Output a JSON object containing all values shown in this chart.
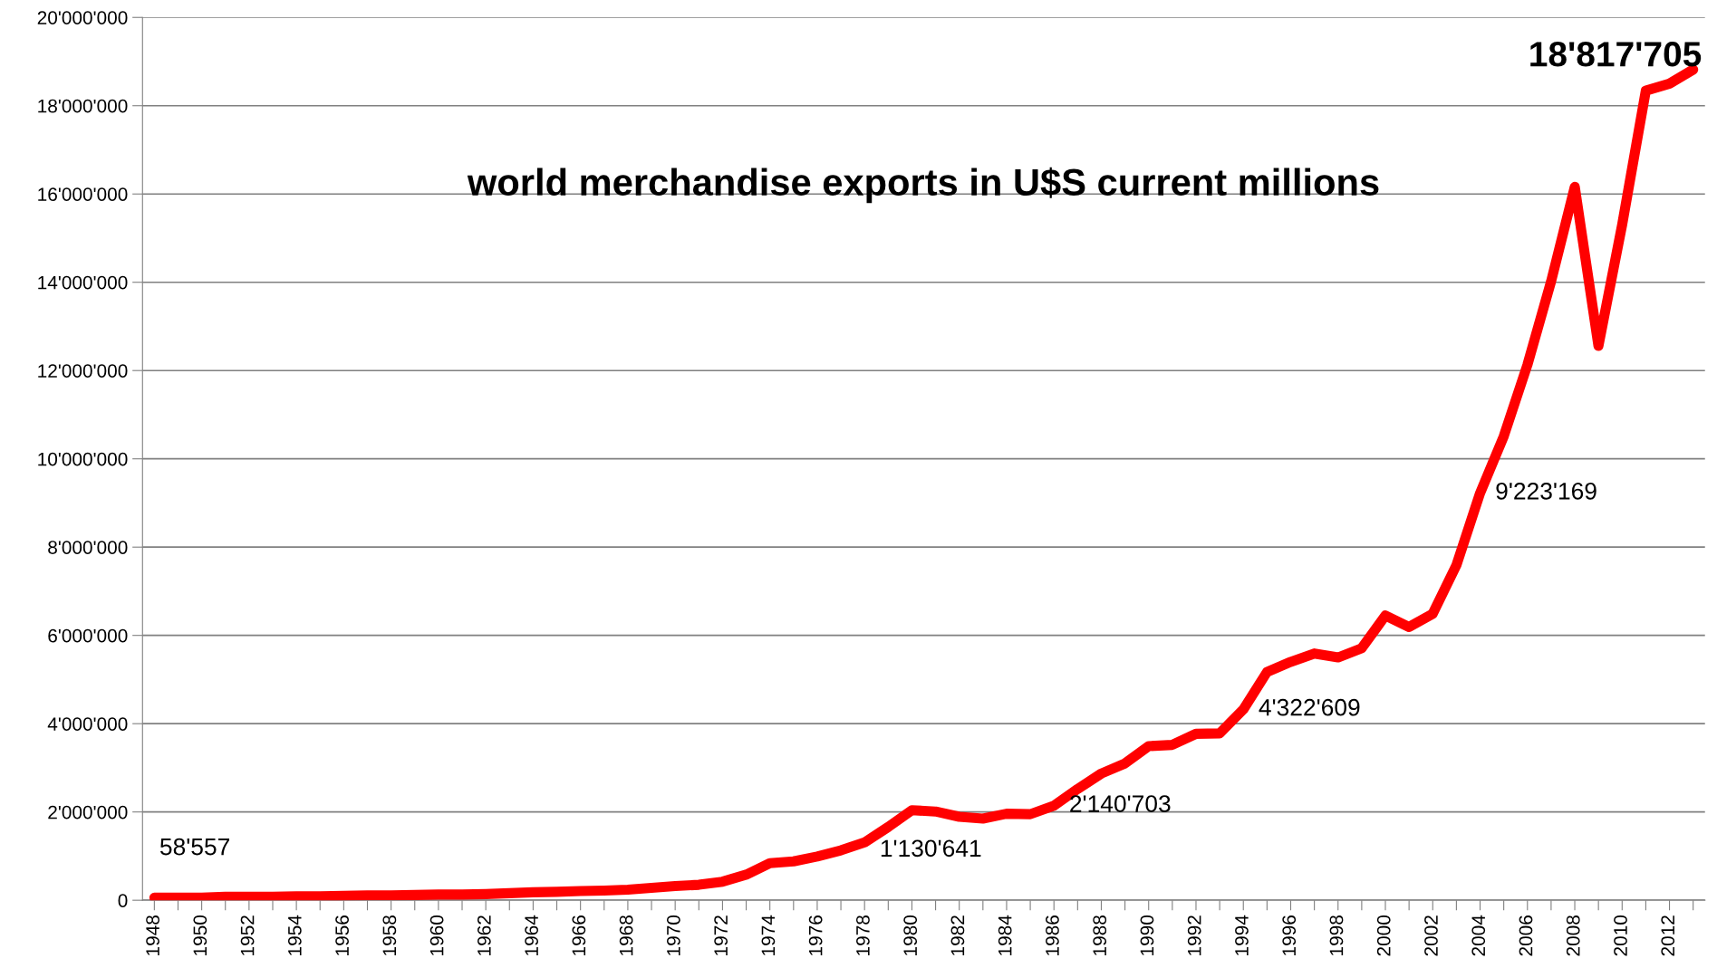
{
  "chart_data": {
    "type": "line",
    "title": "world merchandise exports in U$S current millions",
    "categories": [
      "1948",
      null,
      "1950",
      null,
      "1952",
      null,
      "1954",
      null,
      "1956",
      null,
      "1958",
      null,
      "1960",
      null,
      "1962",
      null,
      "1964",
      null,
      "1966",
      null,
      "1968",
      null,
      "1970",
      null,
      "1972",
      null,
      "1974",
      null,
      "1976",
      null,
      "1978",
      null,
      "1980",
      null,
      "1982",
      null,
      "1984",
      null,
      "1986",
      null,
      "1988",
      null,
      "1990",
      null,
      "1992",
      null,
      "1994",
      null,
      "1996",
      null,
      "1998",
      null,
      "2000",
      null,
      "2002",
      null,
      "2004",
      null,
      "2006",
      null,
      "2008",
      null,
      "2010",
      null,
      "2012",
      null
    ],
    "series": [
      {
        "color": "#ff0000",
        "values": [
          58557,
          60000,
          60000,
          80000,
          80000,
          80000,
          90000,
          90000,
          100000,
          110000,
          110000,
          120000,
          130000,
          130000,
          140000,
          160000,
          180000,
          190000,
          210000,
          220000,
          240000,
          280000,
          320000,
          350000,
          420000,
          580000,
          840000,
          880000,
          990000,
          1130641,
          1310000,
          1660000,
          2040000,
          2010000,
          1890000,
          1850000,
          1960000,
          1950000,
          2140703,
          2520000,
          2870000,
          3100000,
          3490000,
          3520000,
          3770000,
          3780000,
          4322609,
          5170000,
          5400000,
          5590000,
          5500000,
          5710000,
          6450000,
          6190000,
          6490000,
          7590000,
          9223169,
          10510000,
          12130000,
          14020000,
          16160000,
          12560000,
          15300000,
          18340000,
          18500000,
          18817705
        ]
      }
    ],
    "ylim": [
      0,
      20000000
    ],
    "yticks": [
      0,
      {
        "value": 2000000,
        "label": "2'000'000"
      },
      {
        "value": 4000000,
        "label": "4'000'000"
      },
      {
        "value": 6000000,
        "label": "6'000'000"
      },
      {
        "value": 8000000,
        "label": "8'000'000"
      },
      {
        "value": 10000000,
        "label": "10'000'000"
      },
      {
        "value": 12000000,
        "label": "12'000'000"
      },
      {
        "value": 14000000,
        "label": "14'000'000"
      },
      {
        "value": 16000000,
        "label": "16'000'000"
      },
      {
        "value": 18000000,
        "label": "18'000'000"
      },
      {
        "value": 20000000,
        "label": "20'000'000"
      }
    ],
    "grid": "y",
    "marker": "none",
    "line_style": "solid",
    "annotations": [
      {
        "text": "58'557",
        "x": "1948",
        "y": 58557
      },
      {
        "text": "1'130'641",
        "x": "1978",
        "y": 1130641
      },
      {
        "text": "2'140'703",
        "x": "1986",
        "y": 2140703
      },
      {
        "text": "4'322'609",
        "x": "1994",
        "y": 4322609
      },
      {
        "text": "9'223'169",
        "x": "2004",
        "y": 9223169
      },
      "18'817'705"
    ]
  }
}
